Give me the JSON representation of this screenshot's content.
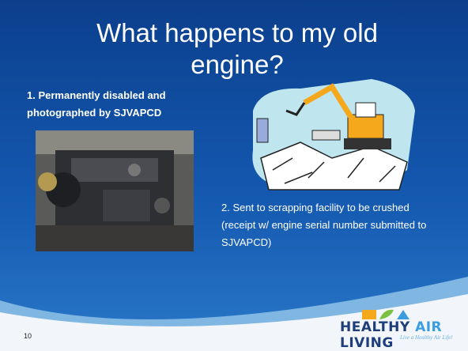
{
  "slide": {
    "title": "What happens to my old engine?",
    "point_1": "1. Permanently disabled and photographed by SJVAPCD",
    "point_2": "2. Sent to scrapping facility to be crushed (receipt w/ engine serial number submitted to SJVAPCD)",
    "page_number": "10",
    "logo": {
      "parts": [
        "HEALTHY",
        "AIR",
        "LIVING"
      ],
      "tagline": "Live a Healthy Air Life!"
    }
  }
}
